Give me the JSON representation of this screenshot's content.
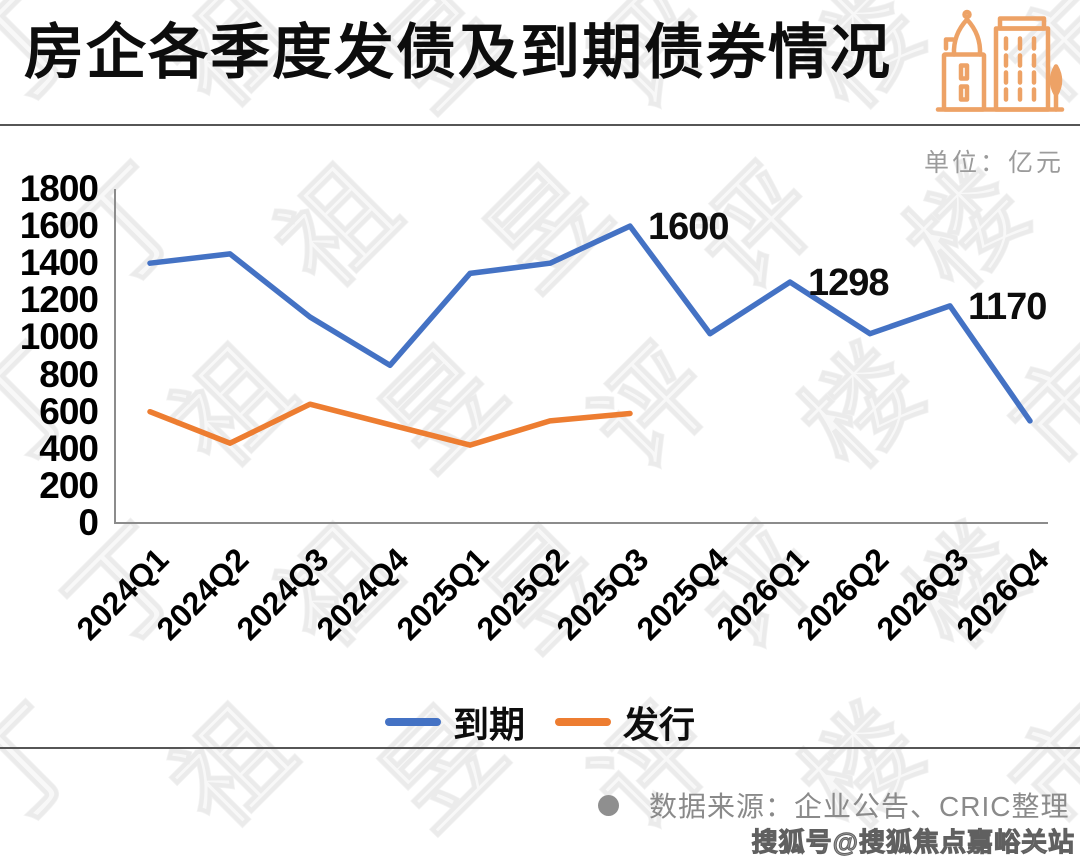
{
  "header": {
    "title": "房企各季度发债及到期债券情况"
  },
  "unit_label": "单位：亿元",
  "chart_data": {
    "type": "line",
    "title": "房企各季度发债及到期债券情况",
    "unit": "亿元",
    "xlabel": "",
    "ylabel": "",
    "ylim": [
      0,
      1800
    ],
    "grid": false,
    "legend_position": "bottom",
    "categories": [
      "2024Q1",
      "2024Q2",
      "2024Q3",
      "2024Q4",
      "2025Q1",
      "2025Q2",
      "2025Q3",
      "2025Q4",
      "2026Q1",
      "2026Q2",
      "2026Q3",
      "2026Q4"
    ],
    "yticks": [
      0,
      200,
      400,
      600,
      800,
      1000,
      1200,
      1400,
      1600,
      1800
    ],
    "series": [
      {
        "name": "到期",
        "color": "#4472C4",
        "values": [
          1400,
          1450,
          1110,
          850,
          1345,
          1400,
          1600,
          1020,
          1298,
          1020,
          1170,
          550
        ]
      },
      {
        "name": "发行",
        "color": "#ED7D31",
        "values": [
          600,
          430,
          640,
          530,
          420,
          550,
          590
        ]
      }
    ],
    "point_labels": [
      {
        "index": 6,
        "text": "1600"
      },
      {
        "index": 8,
        "text": "1298"
      },
      {
        "index": 10,
        "text": "1170"
      }
    ]
  },
  "colors": {
    "maturity_line": "#4472C4",
    "issuance_line": "#ED7D31",
    "icon_orange": "#EDA266",
    "axis_gray": "#8c8c8c",
    "divider_gray": "#565656"
  },
  "footer": {
    "source": "数据来源：企业公告、CRIC整理",
    "sohu_account": "搜狐号@搜狐焦点嘉峪关站"
  },
  "watermark": {
    "text": "丁祖昱评楼市"
  }
}
